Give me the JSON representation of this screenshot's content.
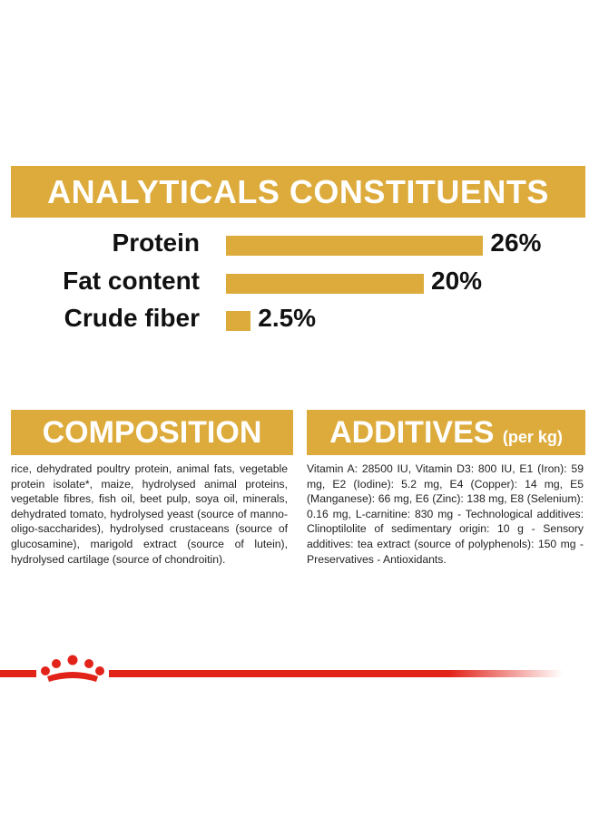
{
  "header": {
    "title": "ANALYTICALS CONSTITUENTS"
  },
  "constituents": [
    {
      "label": "Protein",
      "value": 26,
      "value_label": "26%"
    },
    {
      "label": "Fat content",
      "value": 20,
      "value_label": "20%"
    },
    {
      "label": "Crude fiber",
      "value": 2.5,
      "value_label": "2.5%"
    }
  ],
  "composition": {
    "title": "COMPOSITION",
    "text": "rice, dehydrated poultry protein, animal fats, vegetable protein isolate*, maize, hydrolysed animal proteins, vegetable fibres, fish oil, beet pulp, soya oil, minerals, dehydrated tomato, hydrolysed yeast (source of manno-oligo-saccharides), hydrolysed crustaceans (source of glucosamine), marigold extract (source of lutein), hydrolysed cartilage (source of chondroitin)."
  },
  "additives": {
    "title": "ADDITIVES",
    "subtitle": "(per kg)",
    "text": "Vitamin A: 28500 IU, Vitamin D3: 800 IU, E1 (Iron): 59 mg, E2 (Iodine): 5.2 mg, E4 (Copper): 14 mg, E5 (Manganese): 66 mg, E6 (Zinc): 138 mg, E8 (Selenium): 0.16 mg, L-carnitine: 830 mg - Technological additives: Clinoptilolite of sedimentary origin: 10 g - Sensory additives: tea extract (source of polyphenols): 150 mg - Preservatives - Antioxidants."
  }
}
